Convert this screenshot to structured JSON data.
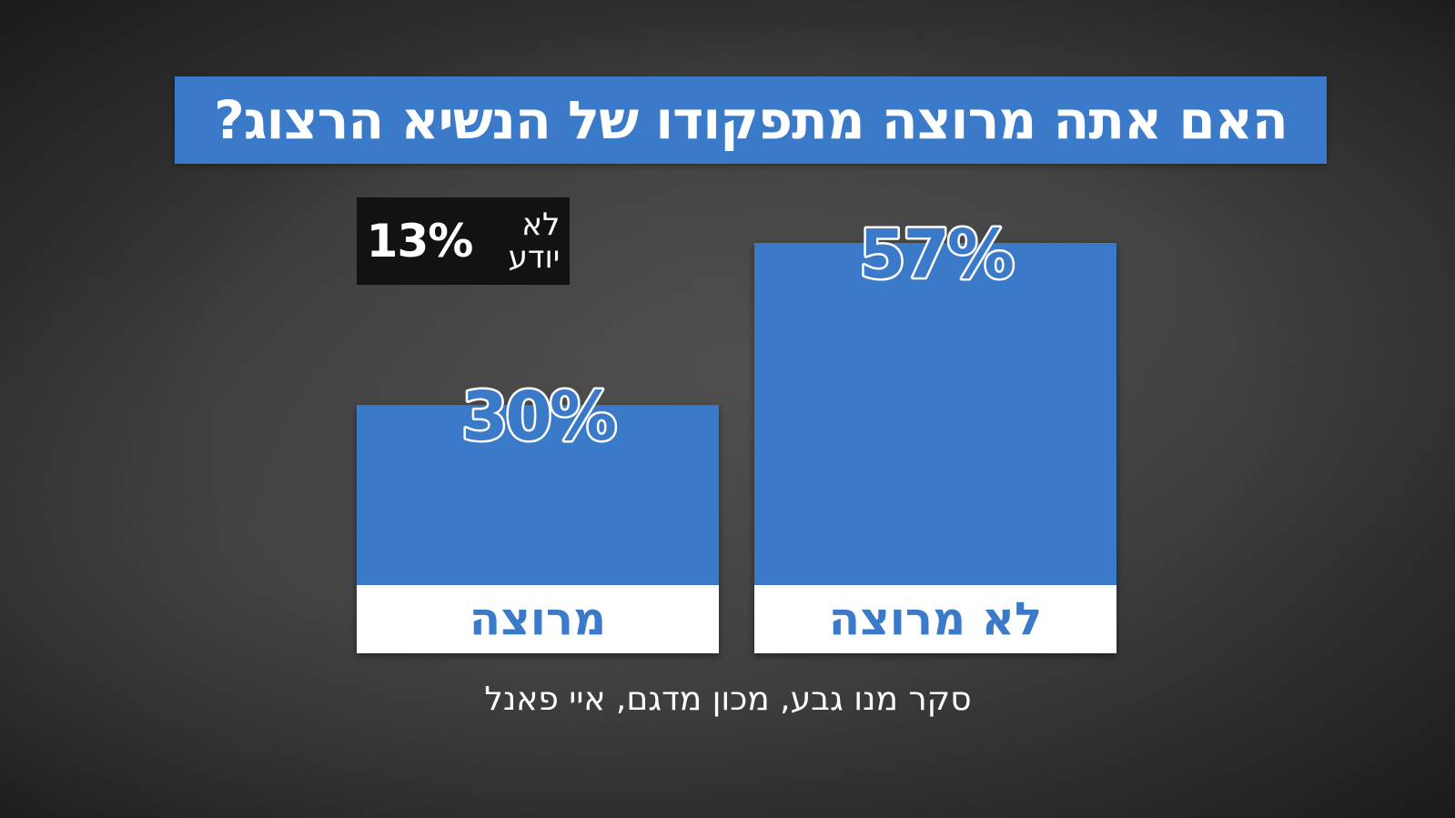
{
  "title": "האם אתה מרוצה מתפקודו של הנשיא הרצוג?",
  "dont_know": {
    "value_text": "13%",
    "label": "לא יודע"
  },
  "source": "סקר מנו גבע, מכון מדגם, איי פאנל",
  "colors": {
    "bar": "#3a7ac8",
    "label_band": "#ffffff",
    "label_text": "#3a7ac8",
    "value_fill": "#3a7ac8",
    "value_stroke": "#ffffff"
  },
  "chart_data": {
    "type": "bar",
    "title": "האם אתה מרוצה מתפקודו של הנשיא הרצוג?",
    "categories": [
      "מרוצה",
      "לא מרוצה"
    ],
    "values": [
      30,
      57
    ],
    "value_labels": [
      "30%",
      "57%"
    ],
    "extra": {
      "category": "לא יודע",
      "value": 13,
      "value_label": "13%"
    },
    "ylim": [
      0,
      57
    ],
    "unit": "%",
    "grid": false,
    "legend": "none"
  }
}
